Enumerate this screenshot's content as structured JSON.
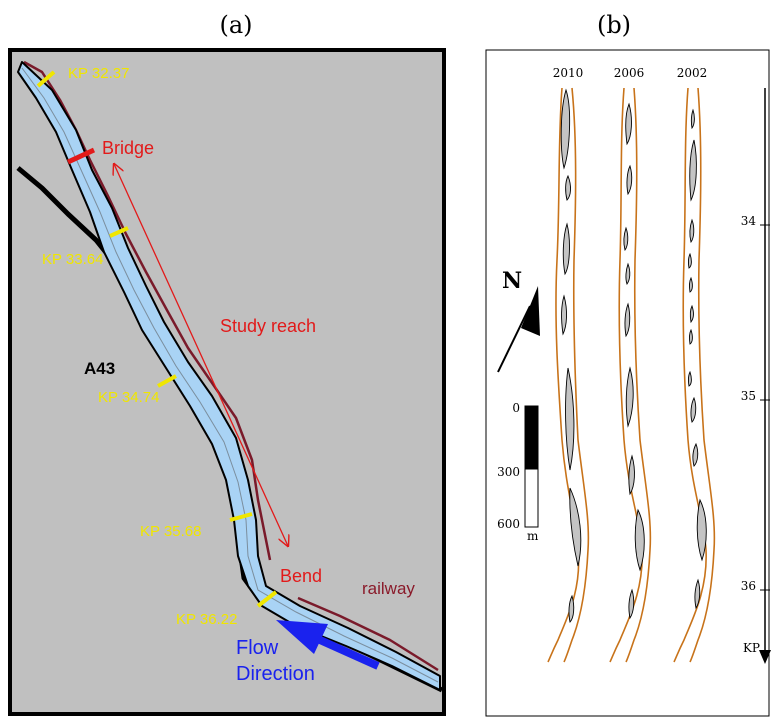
{
  "panel_a": {
    "title": "(a)",
    "kp_labels": [
      "KP 32.37",
      "KP 33.64",
      "KP 34.74",
      "KP 35.68",
      "KP 36.22"
    ],
    "bridge": "Bridge",
    "study_reach": "Study reach",
    "road": "A43",
    "bend": "Bend",
    "railway": "railway",
    "flow_line1": "Flow",
    "flow_line2": "Direction",
    "colors": {
      "background": "#c0c0c0",
      "river_fill": "#a9d3f5",
      "railway": "#7a1a2a",
      "kp_markers": "#f0e600",
      "red_labels": "#e21a1a",
      "flow_arrow": "#1a22ee"
    }
  },
  "panel_b": {
    "title": "(b)",
    "years": [
      "2010",
      "2006",
      "2002"
    ],
    "north": "N",
    "scale": {
      "ticks": [
        "0",
        "300",
        "600"
      ],
      "unit": "m"
    },
    "kp_axis": {
      "ticks": [
        "34",
        "35",
        "36"
      ],
      "label": "KP"
    },
    "colors": {
      "banks": "#c8731a",
      "bars": "#c4c4c4"
    }
  }
}
